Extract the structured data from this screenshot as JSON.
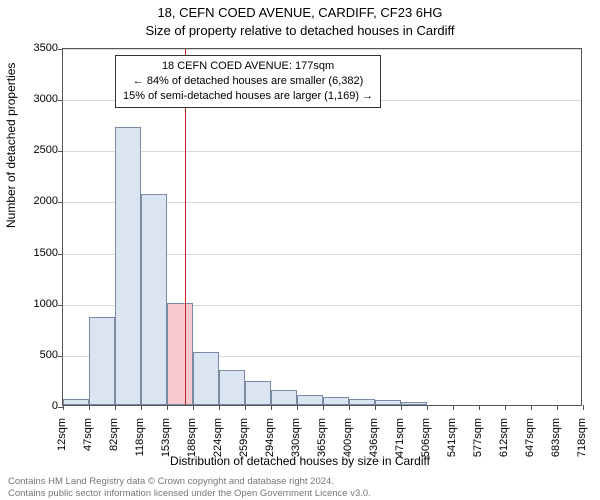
{
  "title": {
    "line1": "18, CEFN COED AVENUE, CARDIFF, CF23 6HG",
    "line2": "Size of property relative to detached houses in Cardiff",
    "fontsize": 13,
    "color": "#000000"
  },
  "callout": {
    "line1": "18 CEFN COED AVENUE: 177sqm",
    "line2": "← 84% of detached houses are smaller (6,382)",
    "line3": "15% of semi-detached houses are larger (1,169) →",
    "border_color": "#333333",
    "background_color": "#ffffff",
    "fontsize": 11
  },
  "chart": {
    "type": "histogram",
    "plot_bg": "#ffffff",
    "border_color": "#555555",
    "grid_color": "#d9d9d9",
    "y": {
      "label": "Number of detached properties",
      "min": 0,
      "max": 3500,
      "ticks": [
        0,
        500,
        1000,
        1500,
        2000,
        2500,
        3000,
        3500
      ],
      "label_fontsize": 12,
      "tick_fontsize": 11
    },
    "x": {
      "label": "Distribution of detached houses by size in Cardiff",
      "unit_suffix": "sqm",
      "ticks": [
        12,
        47,
        82,
        118,
        153,
        188,
        224,
        259,
        294,
        330,
        365,
        400,
        436,
        471,
        506,
        541,
        577,
        612,
        647,
        683,
        718
      ],
      "label_fontsize": 12,
      "tick_fontsize": 11
    },
    "bars": {
      "fill_color": "#dbe5f1",
      "highlight_fill_color": "#f8c9cc",
      "border_color": "#7a8aa3",
      "values": [
        60,
        860,
        2720,
        2060,
        1000,
        520,
        340,
        230,
        150,
        100,
        80,
        60,
        45,
        30,
        0,
        0,
        0,
        0,
        0,
        0
      ],
      "highlight_index": 4
    },
    "reference_line": {
      "value": 177,
      "color": "#c62828",
      "width": 1.5
    }
  },
  "footer": {
    "line1": "Contains HM Land Registry data © Crown copyright and database right 2024.",
    "line2": "Contains public sector information licensed under the Open Government Licence v3.0.",
    "color": "#777777",
    "fontsize": 9.5
  }
}
